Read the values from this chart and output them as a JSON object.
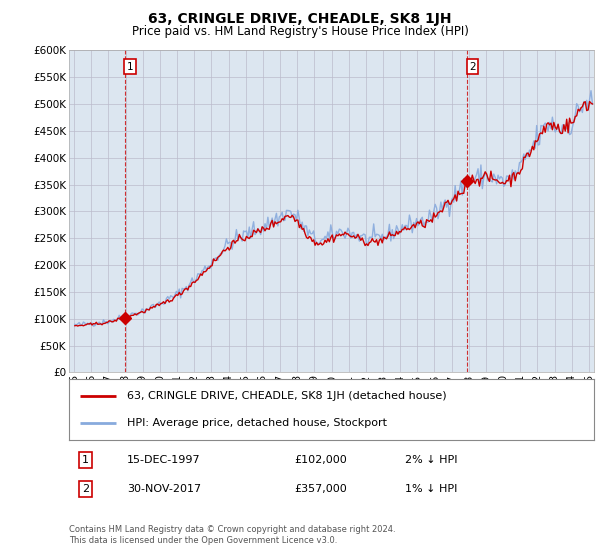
{
  "title": "63, CRINGLE DRIVE, CHEADLE, SK8 1JH",
  "subtitle": "Price paid vs. HM Land Registry's House Price Index (HPI)",
  "ylim": [
    0,
    600000
  ],
  "yticks": [
    0,
    50000,
    100000,
    150000,
    200000,
    250000,
    300000,
    350000,
    400000,
    450000,
    500000,
    550000,
    600000
  ],
  "xlim_start": 1994.7,
  "xlim_end": 2025.3,
  "sale1_date": 1997.96,
  "sale1_price": 102000,
  "sale1_label": "1",
  "sale2_date": 2017.92,
  "sale2_price": 357000,
  "sale2_label": "2",
  "line_color_red": "#cc0000",
  "line_color_blue": "#88aadd",
  "grid_color": "#bbbbcc",
  "plot_bg_color": "#dce6f0",
  "figure_bg_color": "#ffffff",
  "legend_line1": "63, CRINGLE DRIVE, CHEADLE, SK8 1JH (detached house)",
  "legend_line2": "HPI: Average price, detached house, Stockport",
  "footer": "Contains HM Land Registry data © Crown copyright and database right 2024.\nThis data is licensed under the Open Government Licence v3.0.",
  "title_fontsize": 10,
  "subtitle_fontsize": 8.5,
  "tick_fontsize": 7.5,
  "annotation_fontsize": 8
}
